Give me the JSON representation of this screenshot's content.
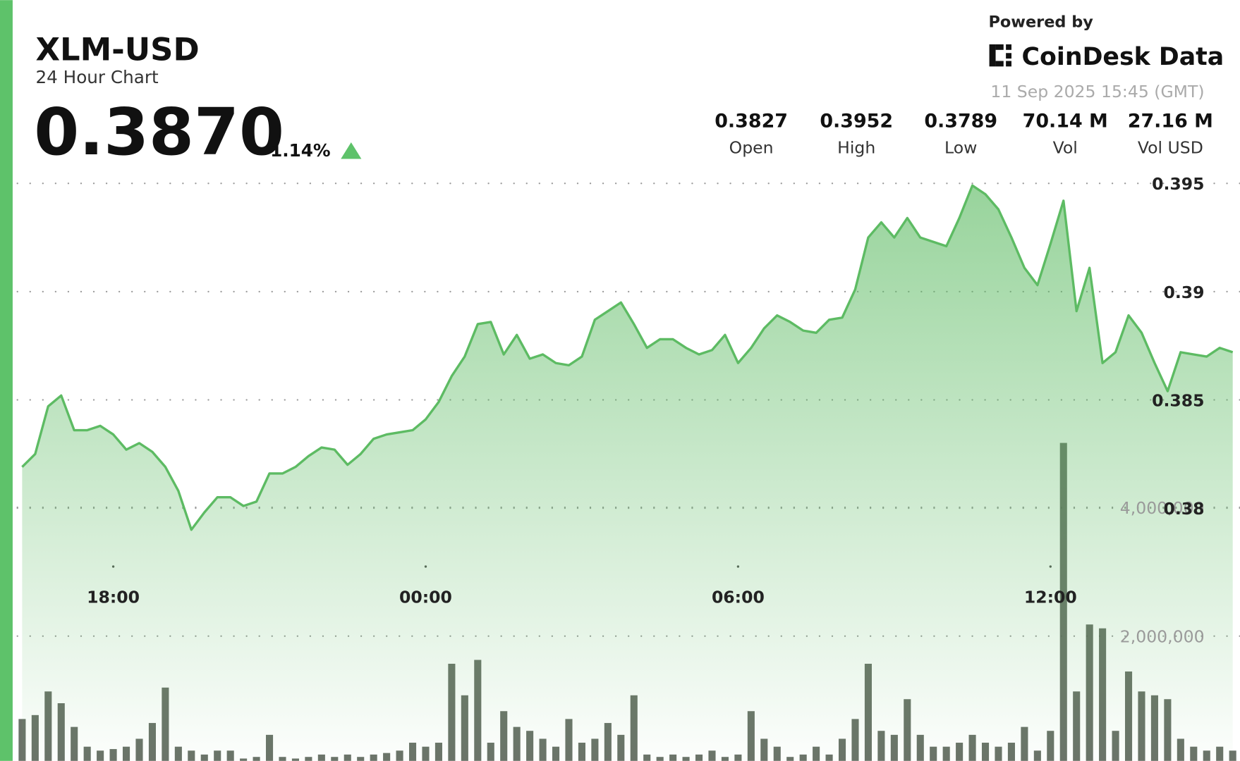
{
  "header": {
    "title": "XLM-USD",
    "subtitle": "24 Hour Chart",
    "price": "0.3870",
    "change": "1.14%",
    "powered_by": "Powered by",
    "brand": "CoinDesk Data",
    "timestamp": "11 Sep 2025 15:45 (GMT)",
    "stats": [
      {
        "value": "0.3827",
        "label": "Open"
      },
      {
        "value": "0.3952",
        "label": "High"
      },
      {
        "value": "0.3789",
        "label": "Low"
      },
      {
        "value": "70.14 M",
        "label": "Vol"
      },
      {
        "value": "27.16 M",
        "label": "Vol USD"
      }
    ]
  },
  "chart_data": {
    "type": "area",
    "x": [
      "16:15",
      "16:30",
      "16:45",
      "17:00",
      "17:15",
      "17:30",
      "17:45",
      "18:00",
      "18:15",
      "18:30",
      "18:45",
      "19:00",
      "19:15",
      "19:30",
      "19:45",
      "20:00",
      "20:15",
      "20:30",
      "20:45",
      "21:00",
      "21:15",
      "21:30",
      "21:45",
      "22:00",
      "22:15",
      "22:30",
      "22:45",
      "23:00",
      "23:15",
      "23:30",
      "23:45",
      "00:00",
      "00:15",
      "00:30",
      "00:45",
      "01:00",
      "01:15",
      "01:30",
      "01:45",
      "02:00",
      "02:15",
      "02:30",
      "02:45",
      "03:00",
      "03:15",
      "03:30",
      "03:45",
      "04:00",
      "04:15",
      "04:30",
      "04:45",
      "05:00",
      "05:15",
      "05:30",
      "05:45",
      "06:00",
      "06:15",
      "06:30",
      "06:45",
      "07:00",
      "07:15",
      "07:30",
      "07:45",
      "08:00",
      "08:15",
      "08:30",
      "08:45",
      "09:00",
      "09:15",
      "09:30",
      "09:45",
      "10:00",
      "10:15",
      "10:30",
      "10:45",
      "11:00",
      "11:15",
      "11:30",
      "11:45",
      "12:00",
      "12:15",
      "12:30",
      "12:45",
      "13:00",
      "13:15",
      "13:30",
      "13:45",
      "14:00",
      "14:15",
      "14:30",
      "14:45",
      "15:00",
      "15:15",
      "15:30"
    ],
    "xticks": [
      "18:00",
      "00:00",
      "06:00",
      "12:00"
    ],
    "series": [
      {
        "name": "Price",
        "type": "area",
        "color": "#5dbb63",
        "values": [
          0.3819,
          0.3825,
          0.3847,
          0.3852,
          0.3836,
          0.3836,
          0.3838,
          0.3834,
          0.3827,
          0.383,
          0.3826,
          0.3819,
          0.3808,
          0.379,
          0.3798,
          0.3805,
          0.3805,
          0.3801,
          0.3803,
          0.3816,
          0.3816,
          0.3819,
          0.3824,
          0.3828,
          0.3827,
          0.382,
          0.3825,
          0.3832,
          0.3834,
          0.3835,
          0.3836,
          0.3841,
          0.3849,
          0.3861,
          0.387,
          0.3885,
          0.3886,
          0.3871,
          0.388,
          0.3869,
          0.3871,
          0.3867,
          0.3866,
          0.387,
          0.3887,
          0.3891,
          0.3895,
          0.3885,
          0.3874,
          0.3878,
          0.3878,
          0.3874,
          0.3871,
          0.3873,
          0.388,
          0.3867,
          0.3874,
          0.3883,
          0.3889,
          0.3886,
          0.3882,
          0.3881,
          0.3887,
          0.3888,
          0.3901,
          0.3925,
          0.3932,
          0.3925,
          0.3934,
          0.3925,
          0.3923,
          0.3921,
          0.3934,
          0.3949,
          0.3945,
          0.3938,
          0.3925,
          0.3911,
          0.3903,
          0.3922,
          0.3942,
          0.3891,
          0.3911,
          0.3867,
          0.3872,
          0.3889,
          0.3881,
          0.3867,
          0.3854,
          0.3872,
          0.3871,
          0.387,
          0.3874,
          0.3872
        ]
      },
      {
        "name": "Volume",
        "type": "bar",
        "axis": "y2",
        "color": "#5b6459",
        "values": [
          712000,
          773000,
          1140000,
          957000,
          589000,
          282000,
          221000,
          245000,
          282000,
          405000,
          650000,
          1200000,
          282000,
          221000,
          160000,
          221000,
          221000,
          98000,
          123000,
          466000,
          123000,
          98000,
          123000,
          160000,
          123000,
          160000,
          123000,
          160000,
          184000,
          221000,
          344000,
          282000,
          344000,
          1570000,
          1080000,
          1630000,
          344000,
          834000,
          589000,
          528000,
          405000,
          282000,
          712000,
          344000,
          405000,
          650000,
          466000,
          1080000,
          160000,
          123000,
          160000,
          123000,
          160000,
          221000,
          123000,
          160000,
          834000,
          405000,
          282000,
          123000,
          160000,
          282000,
          160000,
          405000,
          712000,
          1570000,
          528000,
          466000,
          1020000,
          466000,
          282000,
          282000,
          344000,
          466000,
          344000,
          282000,
          344000,
          589000,
          221000,
          528000,
          5000000,
          1140000,
          2180000,
          2120000,
          528000,
          1450000,
          1140000,
          1080000,
          1020000,
          405000,
          282000,
          221000,
          282000,
          221000
        ]
      }
    ],
    "ylim": [
      0.3775,
      0.3975
    ],
    "yticks": [
      0.38,
      0.385,
      0.39,
      0.395
    ],
    "y2lim": [
      0,
      5000000
    ],
    "y2ticks": [
      {
        "value": 2000000,
        "label": "2,000,000"
      },
      {
        "value": 4000000,
        "label": "4,000,000"
      }
    ],
    "grid": true
  }
}
